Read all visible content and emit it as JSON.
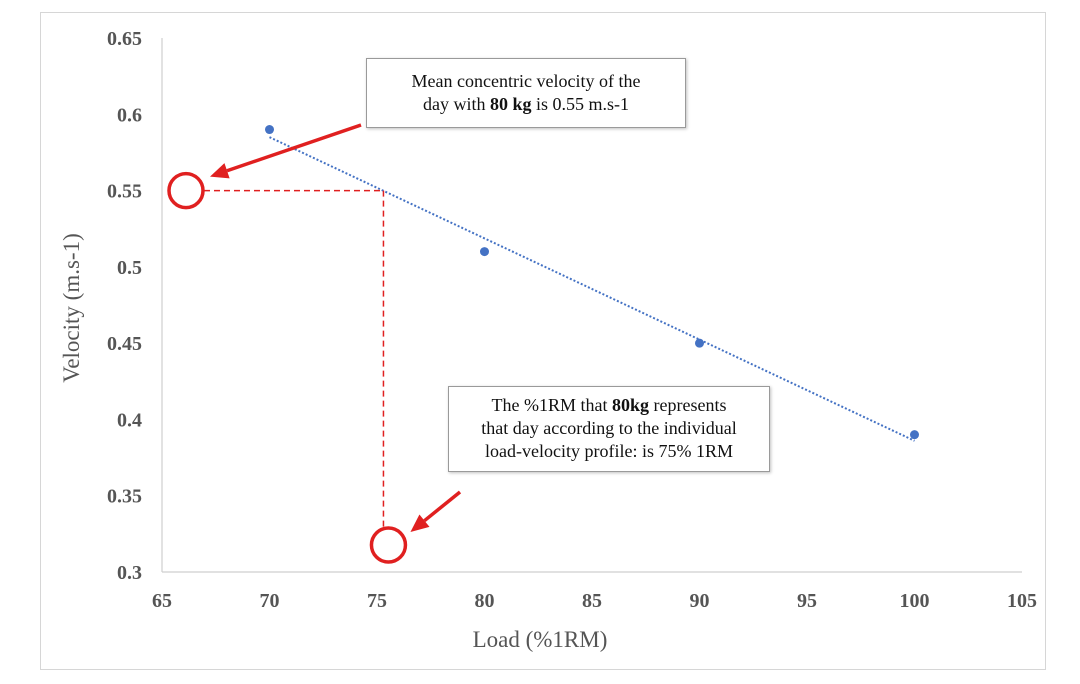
{
  "chart_data": {
    "type": "scatter",
    "xlabel": "Load (%1RM)",
    "ylabel": "Velocity (m.s-1)",
    "xlim": [
      65,
      105
    ],
    "ylim": [
      0.3,
      0.65
    ],
    "xticks": [
      "65",
      "70",
      "75",
      "80",
      "85",
      "90",
      "95",
      "100",
      "105"
    ],
    "yticks": [
      "0.3",
      "0.35",
      "0.4",
      "0.45",
      "0.5",
      "0.55",
      "0.6",
      "0.65"
    ],
    "points": [
      {
        "x": 70,
        "y": 0.59
      },
      {
        "x": 80,
        "y": 0.51
      },
      {
        "x": 90,
        "y": 0.45
      },
      {
        "x": 100,
        "y": 0.39
      }
    ],
    "trendline": {
      "style": "dotted",
      "x_start": 70,
      "y_start": 0.585,
      "x_end": 100,
      "y_end": 0.386
    },
    "highlight": {
      "x": 75.3,
      "y": 0.55
    },
    "grid": false,
    "point_color": "#4472c4",
    "annotation_color": "#e02020",
    "annotations": [
      {
        "line1": "Mean concentric velocity of the",
        "line2_pre": "day with ",
        "line2_bold": "80 kg",
        "line2_post": " is 0.55 m.s-1"
      },
      {
        "line1_pre": "The %1RM that ",
        "line1_bold": "80kg",
        "line1_post": " represents",
        "line2": "that day according to the individual",
        "line3": "load-velocity profile: is 75% 1RM"
      }
    ]
  }
}
